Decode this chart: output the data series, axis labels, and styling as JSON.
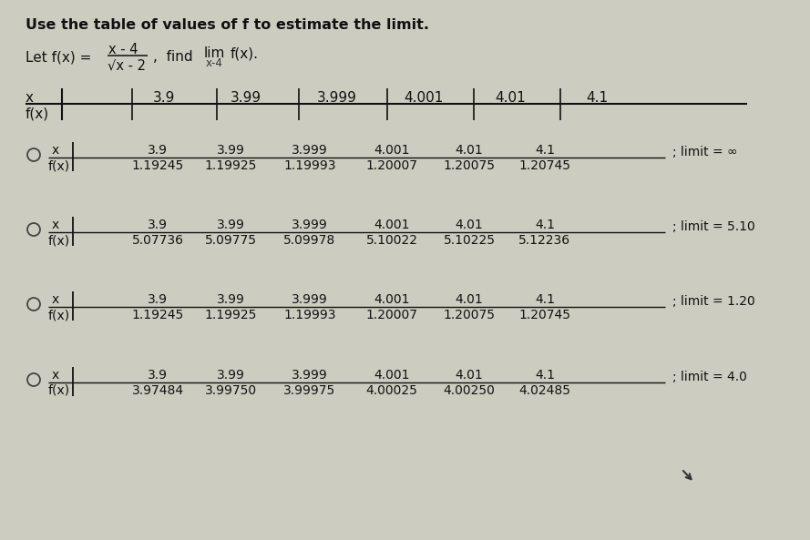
{
  "title": "Use the table of values of f to estimate the limit.",
  "bg_color": "#ccccc0",
  "text_color": "#111111",
  "circle_color": "#444444",
  "table_x_vals": [
    "3.9",
    "3.99",
    "3.999",
    "4.001",
    "4.01",
    "4.1"
  ],
  "options": [
    {
      "x_row": [
        "3.9",
        "3.99",
        "3.999",
        "4.001",
        "4.01",
        "4.1"
      ],
      "fx_row": [
        "1.19245",
        "1.19925",
        "1.19993",
        "1.20007",
        "1.20075",
        "1.20745"
      ],
      "limit_text": "; limit = ∞"
    },
    {
      "x_row": [
        "3.9",
        "3.99",
        "3.999",
        "4.001",
        "4.01",
        "4.1"
      ],
      "fx_row": [
        "5.07736",
        "5.09775",
        "5.09978",
        "5.10022",
        "5.10225",
        "5.12236"
      ],
      "limit_text": "; limit = 5.10"
    },
    {
      "x_row": [
        "3.9",
        "3.99",
        "3.999",
        "4.001",
        "4.01",
        "4.1"
      ],
      "fx_row": [
        "1.19245",
        "1.19925",
        "1.19993",
        "1.20007",
        "1.20075",
        "1.20745"
      ],
      "limit_text": "; limit = 1.20"
    },
    {
      "x_row": [
        "3.9",
        "3.99",
        "3.999",
        "4.001",
        "4.01",
        "4.1"
      ],
      "fx_row": [
        "3.97484",
        "3.99750",
        "3.99975",
        "4.00025",
        "4.00250",
        "4.02485"
      ],
      "limit_text": "; limit = 4.0"
    }
  ]
}
